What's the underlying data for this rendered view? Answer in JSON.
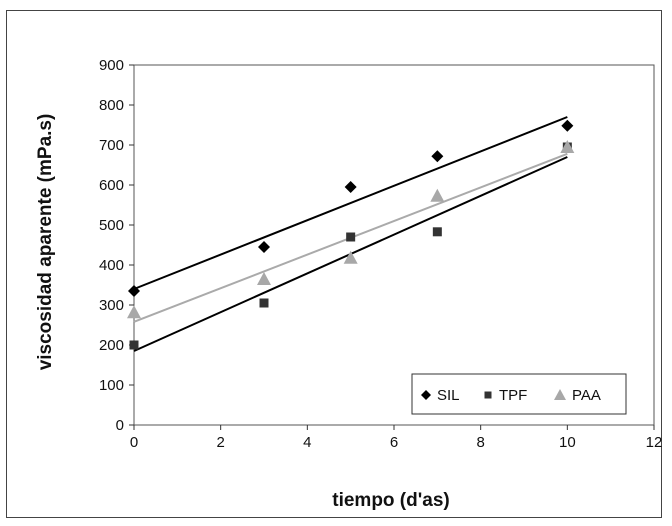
{
  "chart_data": {
    "type": "scatter",
    "title": "",
    "xlabel": "tiempo (d'as)",
    "ylabel": "viscosidad aparente (mPa.s)",
    "xlim": [
      0,
      12
    ],
    "ylim": [
      0,
      900
    ],
    "xticks": [
      0,
      2,
      4,
      6,
      8,
      10,
      12
    ],
    "yticks": [
      0,
      100,
      200,
      300,
      400,
      500,
      600,
      700,
      800,
      900
    ],
    "grid": false,
    "legend_position": "bottom-right",
    "series": [
      {
        "name": "SIL",
        "marker": "diamond",
        "color": "#000000",
        "x": [
          0,
          3,
          5,
          7,
          10
        ],
        "y": [
          335,
          445,
          595,
          672,
          748
        ],
        "trendline": {
          "intercept": 340,
          "slope": 43,
          "color": "#000000"
        }
      },
      {
        "name": "TPF",
        "marker": "square",
        "color": "#333333",
        "x": [
          0,
          3,
          5,
          7,
          10
        ],
        "y": [
          200,
          305,
          470,
          483,
          695
        ],
        "trendline": {
          "intercept": 185,
          "slope": 48.5,
          "color": "#000000"
        }
      },
      {
        "name": "PAA",
        "marker": "triangle",
        "color": "#a8a8a8",
        "x": [
          0,
          3,
          5,
          7,
          10
        ],
        "y": [
          282,
          365,
          418,
          573,
          695
        ],
        "trendline": {
          "intercept": 258,
          "slope": 42,
          "color": "#aaaaaa"
        }
      }
    ]
  }
}
